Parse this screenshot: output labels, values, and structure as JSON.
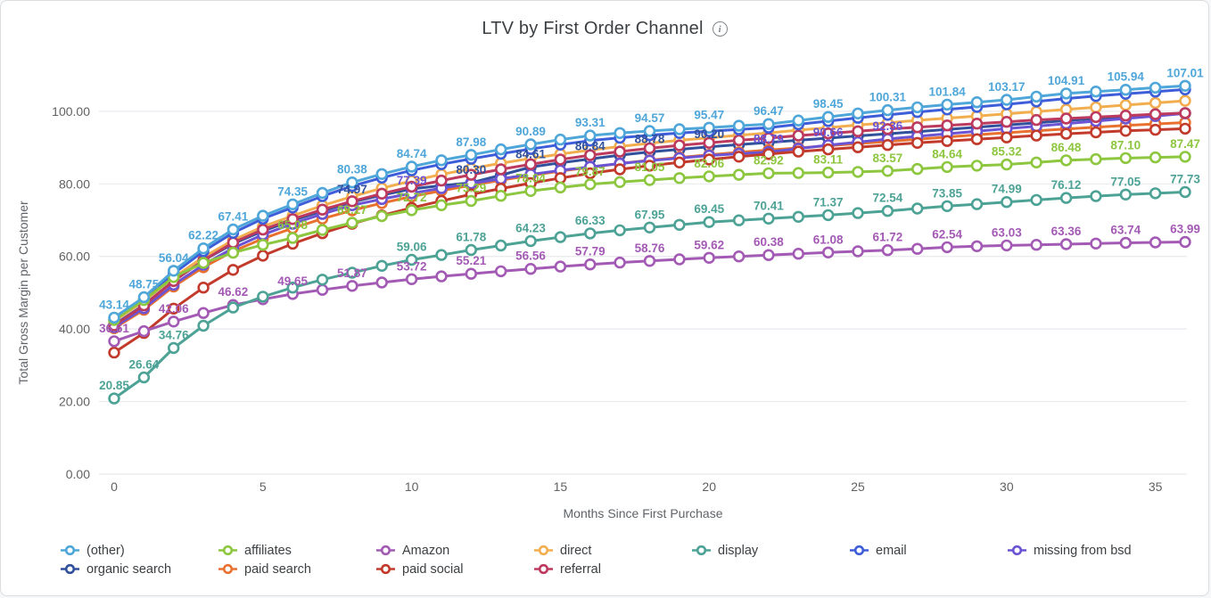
{
  "header": {
    "title": "LTV by First Order Channel",
    "info_icon": "i"
  },
  "chart_data": {
    "type": "line",
    "title": "LTV by First Order Channel",
    "xlabel": "Months Since First Purchase",
    "ylabel": "Total Gross Margin per Customer",
    "x_ticks": [
      0,
      5,
      10,
      15,
      20,
      25,
      30,
      35
    ],
    "y_ticks": [
      {
        "v": 0,
        "label": "0.00"
      },
      {
        "v": 20,
        "label": "20.00"
      },
      {
        "v": 40,
        "label": "40.00"
      },
      {
        "v": 60,
        "label": "60.00"
      },
      {
        "v": 80,
        "label": "80.00"
      },
      {
        "v": 100,
        "label": "100.00"
      }
    ],
    "xlim": [
      0,
      36
    ],
    "ylim": [
      0,
      112
    ],
    "grid": true,
    "legend_position": "bottom",
    "x": [
      0,
      1,
      2,
      3,
      4,
      5,
      6,
      7,
      8,
      9,
      10,
      11,
      12,
      13,
      14,
      15,
      16,
      17,
      18,
      19,
      20,
      21,
      22,
      23,
      24,
      25,
      26,
      27,
      28,
      29,
      30,
      31,
      32,
      33,
      34,
      35,
      36
    ],
    "draw_order": [
      "organic search",
      "paid search",
      "missing from bsd",
      "direct",
      "paid social",
      "referral",
      "email",
      "affiliates",
      "Amazon",
      "display",
      "(other)"
    ],
    "series": [
      {
        "name": "(other)",
        "color": "#4fa6d9",
        "values": [
          43.14,
          48.75,
          56.04,
          62.22,
          67.41,
          71.2,
          74.35,
          77.5,
          80.38,
          82.7,
          84.74,
          86.5,
          87.98,
          89.5,
          90.89,
          92.2,
          93.31,
          94.0,
          94.57,
          95.05,
          95.47,
          96.0,
          96.47,
          97.45,
          98.45,
          99.4,
          100.31,
          101.1,
          101.84,
          102.5,
          103.17,
          104.05,
          104.91,
          105.45,
          105.94,
          106.5,
          107.01
        ],
        "labels": {
          "0": "43.14",
          "1": "48.75",
          "2": "56.04",
          "3": "62.22",
          "4": "67.41",
          "6": "74.35",
          "8": "80.38",
          "10": "84.74",
          "12": "87.98",
          "14": "90.89",
          "16": "93.31",
          "18": "94.57",
          "20": "95.47",
          "22": "96.47",
          "24": "98.45",
          "26": "100.31",
          "28": "101.84",
          "30": "103.17",
          "32": "104.91",
          "34": "105.94",
          "36": "107.01"
        }
      },
      {
        "name": "affiliates",
        "color": "#8dc63f",
        "values": [
          42.5,
          48.0,
          54.3,
          58.2,
          61.0,
          63.2,
          65.08,
          67.3,
          69.27,
          71.1,
          72.72,
          74.1,
          75.29,
          76.7,
          78.04,
          79.0,
          79.87,
          80.5,
          81.05,
          81.6,
          82.06,
          82.5,
          82.92,
          83.0,
          83.11,
          83.3,
          83.57,
          84.1,
          84.64,
          85.0,
          85.32,
          85.9,
          86.48,
          86.8,
          87.1,
          87.3,
          87.47
        ],
        "labels": {
          "6": "65.08",
          "8": "69.27",
          "10": "72.72",
          "12": "75.29",
          "14": "78.04",
          "16": "79.87",
          "18": "81.05",
          "20": "82.06",
          "22": "82.92",
          "24": "83.11",
          "26": "83.57",
          "28": "84.64",
          "30": "85.32",
          "32": "86.48",
          "34": "87.10",
          "36": "87.47"
        }
      },
      {
        "name": "Amazon",
        "color": "#a35ab4",
        "values": [
          36.61,
          39.4,
          42.06,
          44.4,
          46.62,
          48.2,
          49.65,
          50.8,
          51.87,
          52.8,
          53.72,
          54.5,
          55.21,
          55.9,
          56.56,
          57.2,
          57.79,
          58.3,
          58.76,
          59.2,
          59.62,
          60.0,
          60.38,
          60.75,
          61.08,
          61.4,
          61.72,
          62.1,
          62.54,
          62.8,
          63.03,
          63.2,
          63.36,
          63.55,
          63.74,
          63.85,
          63.99
        ],
        "labels": {
          "0": "36.61",
          "2": "42.06",
          "4": "46.62",
          "6": "49.65",
          "8": "51.87",
          "10": "53.72",
          "12": "55.21",
          "14": "56.56",
          "16": "57.79",
          "18": "58.76",
          "20": "59.62",
          "22": "60.38",
          "24": "61.08",
          "26": "61.72",
          "28": "62.54",
          "30": "63.03",
          "32": "63.36",
          "34": "63.74",
          "36": "63.99"
        }
      },
      {
        "name": "direct",
        "color": "#f2ae4e",
        "values": [
          42.2,
          47.6,
          54.2,
          59.8,
          64.5,
          68.2,
          71.2,
          74.0,
          76.5,
          78.8,
          80.8,
          82.6,
          84.2,
          85.7,
          87.0,
          88.2,
          89.3,
          90.3,
          91.2,
          92.0,
          92.7,
          93.4,
          94.0,
          94.8,
          95.5,
          96.2,
          96.8,
          97.5,
          98.1,
          98.7,
          99.3,
          99.9,
          100.5,
          101.1,
          101.7,
          102.3,
          102.9
        ],
        "labels": {}
      },
      {
        "name": "display",
        "color": "#4da296",
        "values": [
          20.85,
          26.64,
          34.76,
          40.9,
          45.9,
          48.9,
          51.4,
          53.6,
          55.5,
          57.4,
          59.06,
          60.4,
          61.78,
          63.0,
          64.23,
          65.3,
          66.33,
          67.2,
          67.95,
          68.7,
          69.45,
          69.95,
          70.41,
          70.9,
          71.37,
          71.95,
          72.54,
          73.2,
          73.85,
          74.4,
          74.99,
          75.55,
          76.12,
          76.6,
          77.05,
          77.4,
          77.73
        ],
        "labels": {
          "0": "20.85",
          "1": "26.64",
          "2": "34.76",
          "10": "59.06",
          "12": "61.78",
          "14": "64.23",
          "16": "66.33",
          "18": "67.95",
          "20": "69.45",
          "22": "70.41",
          "24": "71.37",
          "26": "72.54",
          "28": "73.85",
          "30": "74.99",
          "32": "76.12",
          "34": "77.05",
          "36": "77.73"
        }
      },
      {
        "name": "email",
        "color": "#3e5ed9",
        "values": [
          42.6,
          48.1,
          55.3,
          61.4,
          66.5,
          70.4,
          73.5,
          76.6,
          79.4,
          81.7,
          83.7,
          85.4,
          86.9,
          88.3,
          89.6,
          90.8,
          91.9,
          92.7,
          93.4,
          94.0,
          94.5,
          95.0,
          95.5,
          96.4,
          97.3,
          98.2,
          99.0,
          99.8,
          100.5,
          101.2,
          101.9,
          102.7,
          103.5,
          104.2,
          104.8,
          105.4,
          106.0
        ],
        "labels": {}
      },
      {
        "name": "missing from bsd",
        "color": "#6b54d3",
        "values": [
          40.5,
          45.7,
          52.2,
          57.7,
          62.3,
          66.0,
          69.0,
          71.7,
          74.1,
          75.8,
          77.39,
          78.8,
          80.1,
          81.4,
          82.6,
          83.7,
          84.7,
          85.6,
          86.4,
          87.1,
          87.8,
          88.3,
          88.79,
          89.7,
          90.66,
          91.5,
          92.36,
          93.1,
          93.8,
          94.5,
          95.2,
          95.9,
          96.6,
          97.3,
          98.0,
          98.7,
          99.4
        ],
        "labels": {
          "10": "77.39",
          "22": "88.79",
          "24": "90.66",
          "26": "92.36"
        }
      },
      {
        "name": "organic search",
        "color": "#31519c",
        "values": [
          41.2,
          46.6,
          53.3,
          58.9,
          63.5,
          67.0,
          69.9,
          72.5,
          74.97,
          76.9,
          78.6,
          79.5,
          80.3,
          82.4,
          84.61,
          85.8,
          86.84,
          87.9,
          88.78,
          89.5,
          90.2,
          90.8,
          91.4,
          92.0,
          92.6,
          93.2,
          93.8,
          94.4,
          95.0,
          95.6,
          96.2,
          96.8,
          97.4,
          98.0,
          98.5,
          99.0,
          99.5
        ],
        "labels": {
          "8": "74.97",
          "12": "80.30",
          "14": "84.61",
          "16": "86.84",
          "18": "88.78",
          "20": "90.20"
        }
      },
      {
        "name": "paid search",
        "color": "#e8712f",
        "values": [
          40.2,
          45.3,
          51.7,
          57.0,
          61.4,
          64.9,
          67.8,
          70.4,
          72.7,
          74.7,
          76.5,
          78.1,
          79.6,
          81.0,
          82.3,
          83.5,
          84.6,
          85.6,
          86.5,
          87.3,
          88.0,
          88.7,
          89.3,
          89.9,
          90.5,
          91.1,
          91.7,
          92.3,
          92.9,
          93.5,
          94.1,
          94.6,
          95.1,
          95.6,
          96.1,
          96.5,
          96.9
        ],
        "labels": {}
      },
      {
        "name": "paid social",
        "color": "#c23a2b",
        "values": [
          33.5,
          38.9,
          45.6,
          51.4,
          56.3,
          60.2,
          63.5,
          66.4,
          69.0,
          71.3,
          73.4,
          75.3,
          77.1,
          78.7,
          80.2,
          81.6,
          82.9,
          84.0,
          85.0,
          85.9,
          86.7,
          87.5,
          88.2,
          88.9,
          89.5,
          90.1,
          90.7,
          91.3,
          91.8,
          92.3,
          92.8,
          93.3,
          93.8,
          94.2,
          94.6,
          94.9,
          95.2
        ],
        "labels": {}
      },
      {
        "name": "referral",
        "color": "#bd3a5f",
        "values": [
          41.0,
          46.5,
          53.2,
          58.9,
          63.8,
          67.4,
          70.3,
          72.9,
          75.2,
          77.3,
          79.2,
          80.9,
          82.5,
          84.0,
          85.4,
          86.7,
          87.9,
          88.9,
          89.8,
          90.6,
          91.3,
          92.0,
          92.6,
          93.3,
          93.9,
          94.5,
          95.1,
          95.6,
          96.1,
          96.6,
          97.1,
          97.6,
          98.0,
          98.4,
          98.8,
          99.2,
          99.5
        ],
        "labels": {}
      }
    ]
  },
  "legend_order": [
    "(other)",
    "affiliates",
    "Amazon",
    "direct",
    "display",
    "email",
    "missing from bsd",
    "organic search",
    "paid search",
    "paid social",
    "referral"
  ]
}
